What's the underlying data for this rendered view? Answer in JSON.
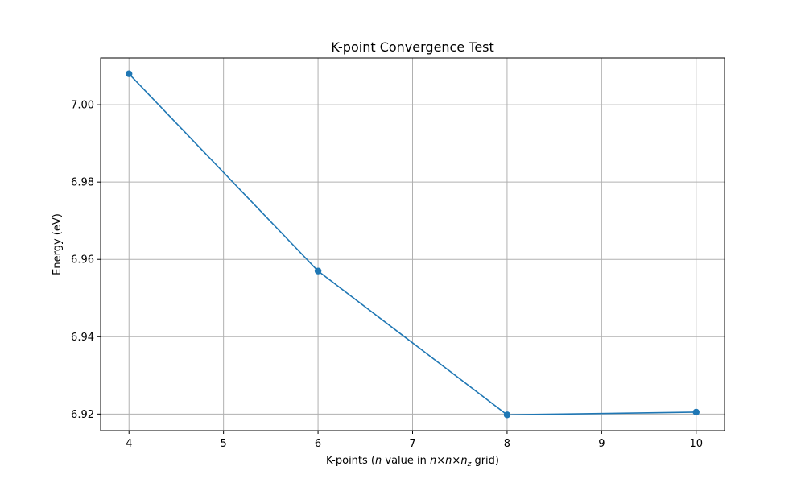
{
  "chart_data": {
    "type": "line",
    "title": "K-point Convergence Test",
    "xlabel": {
      "prefix": "K-points (",
      "var_n": "n",
      "mid": " value in ",
      "grid_n1": "n",
      "times": "×",
      "grid_n2": "n",
      "grid_nz_base": "n",
      "grid_nz_sub": "z",
      "suffix": " grid)"
    },
    "ylabel": "Energy (eV)",
    "x": [
      4,
      6,
      8,
      10
    ],
    "series": [
      {
        "values": [
          7.008,
          6.957,
          6.9198,
          6.9205
        ],
        "color": "#1f77b4",
        "marker": "circle"
      }
    ],
    "xlim": [
      3.7,
      10.3
    ],
    "ylim": [
      6.9157,
      7.0121
    ],
    "x_ticks": [
      4,
      5,
      6,
      7,
      8,
      9,
      10
    ],
    "x_tick_labels": [
      "4",
      "5",
      "6",
      "7",
      "8",
      "9",
      "10"
    ],
    "y_ticks": [
      6.92,
      6.94,
      6.96,
      6.98,
      7.0
    ],
    "y_tick_labels": [
      "6.92",
      "6.94",
      "6.96",
      "6.98",
      "7.00"
    ],
    "grid": true
  }
}
